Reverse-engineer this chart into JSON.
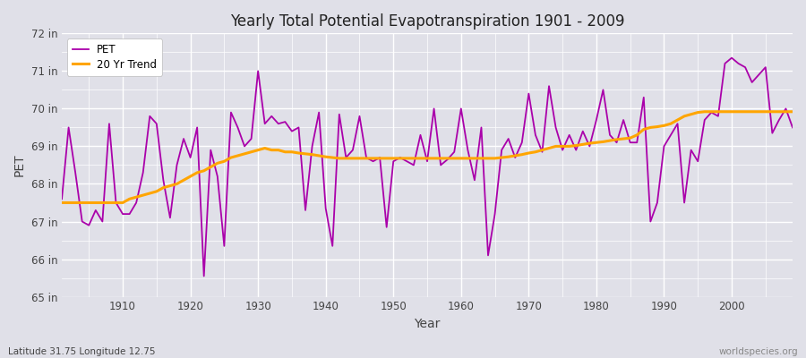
{
  "title": "Yearly Total Potential Evapotranspiration 1901 - 2009",
  "ylabel": "PET",
  "xlabel": "Year",
  "bottom_left_label": "Latitude 31.75 Longitude 12.75",
  "bottom_right_label": "worldspecies.org",
  "pet_color": "#AA00AA",
  "trend_color": "#FFA500",
  "background_color": "#E0E0E8",
  "grid_color": "#FFFFFF",
  "ylim": [
    65,
    72
  ],
  "years": [
    1901,
    1902,
    1903,
    1904,
    1905,
    1906,
    1907,
    1908,
    1909,
    1910,
    1911,
    1912,
    1913,
    1914,
    1915,
    1916,
    1917,
    1918,
    1919,
    1920,
    1921,
    1922,
    1923,
    1924,
    1925,
    1926,
    1927,
    1928,
    1929,
    1930,
    1931,
    1932,
    1933,
    1934,
    1935,
    1936,
    1937,
    1938,
    1939,
    1940,
    1941,
    1942,
    1943,
    1944,
    1945,
    1946,
    1947,
    1948,
    1949,
    1950,
    1951,
    1952,
    1953,
    1954,
    1955,
    1956,
    1957,
    1958,
    1959,
    1960,
    1961,
    1962,
    1963,
    1964,
    1965,
    1966,
    1967,
    1968,
    1969,
    1970,
    1971,
    1972,
    1973,
    1974,
    1975,
    1976,
    1977,
    1978,
    1979,
    1980,
    1981,
    1982,
    1983,
    1984,
    1985,
    1986,
    1987,
    1988,
    1989,
    1990,
    1991,
    1992,
    1993,
    1994,
    1995,
    1996,
    1997,
    1998,
    1999,
    2000,
    2001,
    2002,
    2003,
    2004,
    2005,
    2006,
    2007,
    2008,
    2009
  ],
  "pet_values": [
    67.6,
    69.5,
    68.3,
    67.0,
    66.9,
    67.3,
    67.0,
    69.6,
    67.5,
    67.2,
    67.2,
    67.5,
    68.3,
    69.8,
    69.6,
    68.1,
    67.1,
    68.5,
    69.2,
    68.7,
    69.5,
    65.55,
    68.9,
    68.2,
    66.35,
    69.9,
    69.5,
    69.0,
    69.2,
    71.0,
    69.6,
    69.8,
    69.6,
    69.65,
    69.4,
    69.5,
    67.3,
    69.0,
    69.9,
    67.35,
    66.35,
    69.85,
    68.7,
    68.9,
    69.8,
    68.7,
    68.6,
    68.7,
    66.85,
    68.6,
    68.7,
    68.6,
    68.5,
    69.3,
    68.6,
    70.0,
    68.5,
    68.65,
    68.85,
    70.0,
    68.9,
    68.1,
    69.5,
    66.1,
    67.2,
    68.9,
    69.2,
    68.7,
    69.1,
    70.4,
    69.3,
    68.85,
    70.6,
    69.5,
    68.9,
    69.3,
    68.9,
    69.4,
    69.0,
    69.7,
    70.5,
    69.3,
    69.1,
    69.7,
    69.1,
    69.1,
    70.3,
    67.0,
    67.5,
    69.0,
    69.3,
    69.6,
    67.5,
    68.9,
    68.6,
    69.7,
    69.9,
    69.8,
    71.2,
    71.35,
    71.2,
    71.1,
    70.7,
    70.9,
    71.1,
    69.35,
    69.7,
    70.0,
    69.5
  ],
  "trend_values": [
    67.5,
    67.5,
    67.5,
    67.5,
    67.5,
    67.5,
    67.5,
    67.5,
    67.5,
    67.5,
    67.6,
    67.65,
    67.7,
    67.75,
    67.8,
    67.9,
    67.95,
    68.0,
    68.1,
    68.2,
    68.3,
    68.35,
    68.45,
    68.55,
    68.6,
    68.7,
    68.75,
    68.8,
    68.85,
    68.9,
    68.95,
    68.9,
    68.9,
    68.85,
    68.85,
    68.82,
    68.8,
    68.78,
    68.75,
    68.72,
    68.7,
    68.68,
    68.68,
    68.68,
    68.68,
    68.68,
    68.68,
    68.68,
    68.68,
    68.68,
    68.68,
    68.68,
    68.68,
    68.68,
    68.68,
    68.68,
    68.68,
    68.68,
    68.68,
    68.68,
    68.68,
    68.68,
    68.68,
    68.68,
    68.68,
    68.7,
    68.72,
    68.75,
    68.78,
    68.82,
    68.85,
    68.9,
    68.95,
    69.0,
    69.0,
    69.0,
    69.02,
    69.05,
    69.08,
    69.1,
    69.12,
    69.15,
    69.18,
    69.2,
    69.22,
    69.3,
    69.45,
    69.5,
    69.52,
    69.55,
    69.6,
    69.7,
    69.8,
    69.85,
    69.9,
    69.92,
    69.92,
    69.92,
    69.92,
    69.92,
    69.92,
    69.92,
    69.92,
    69.92,
    69.92,
    69.92,
    69.92,
    69.92,
    69.92
  ]
}
